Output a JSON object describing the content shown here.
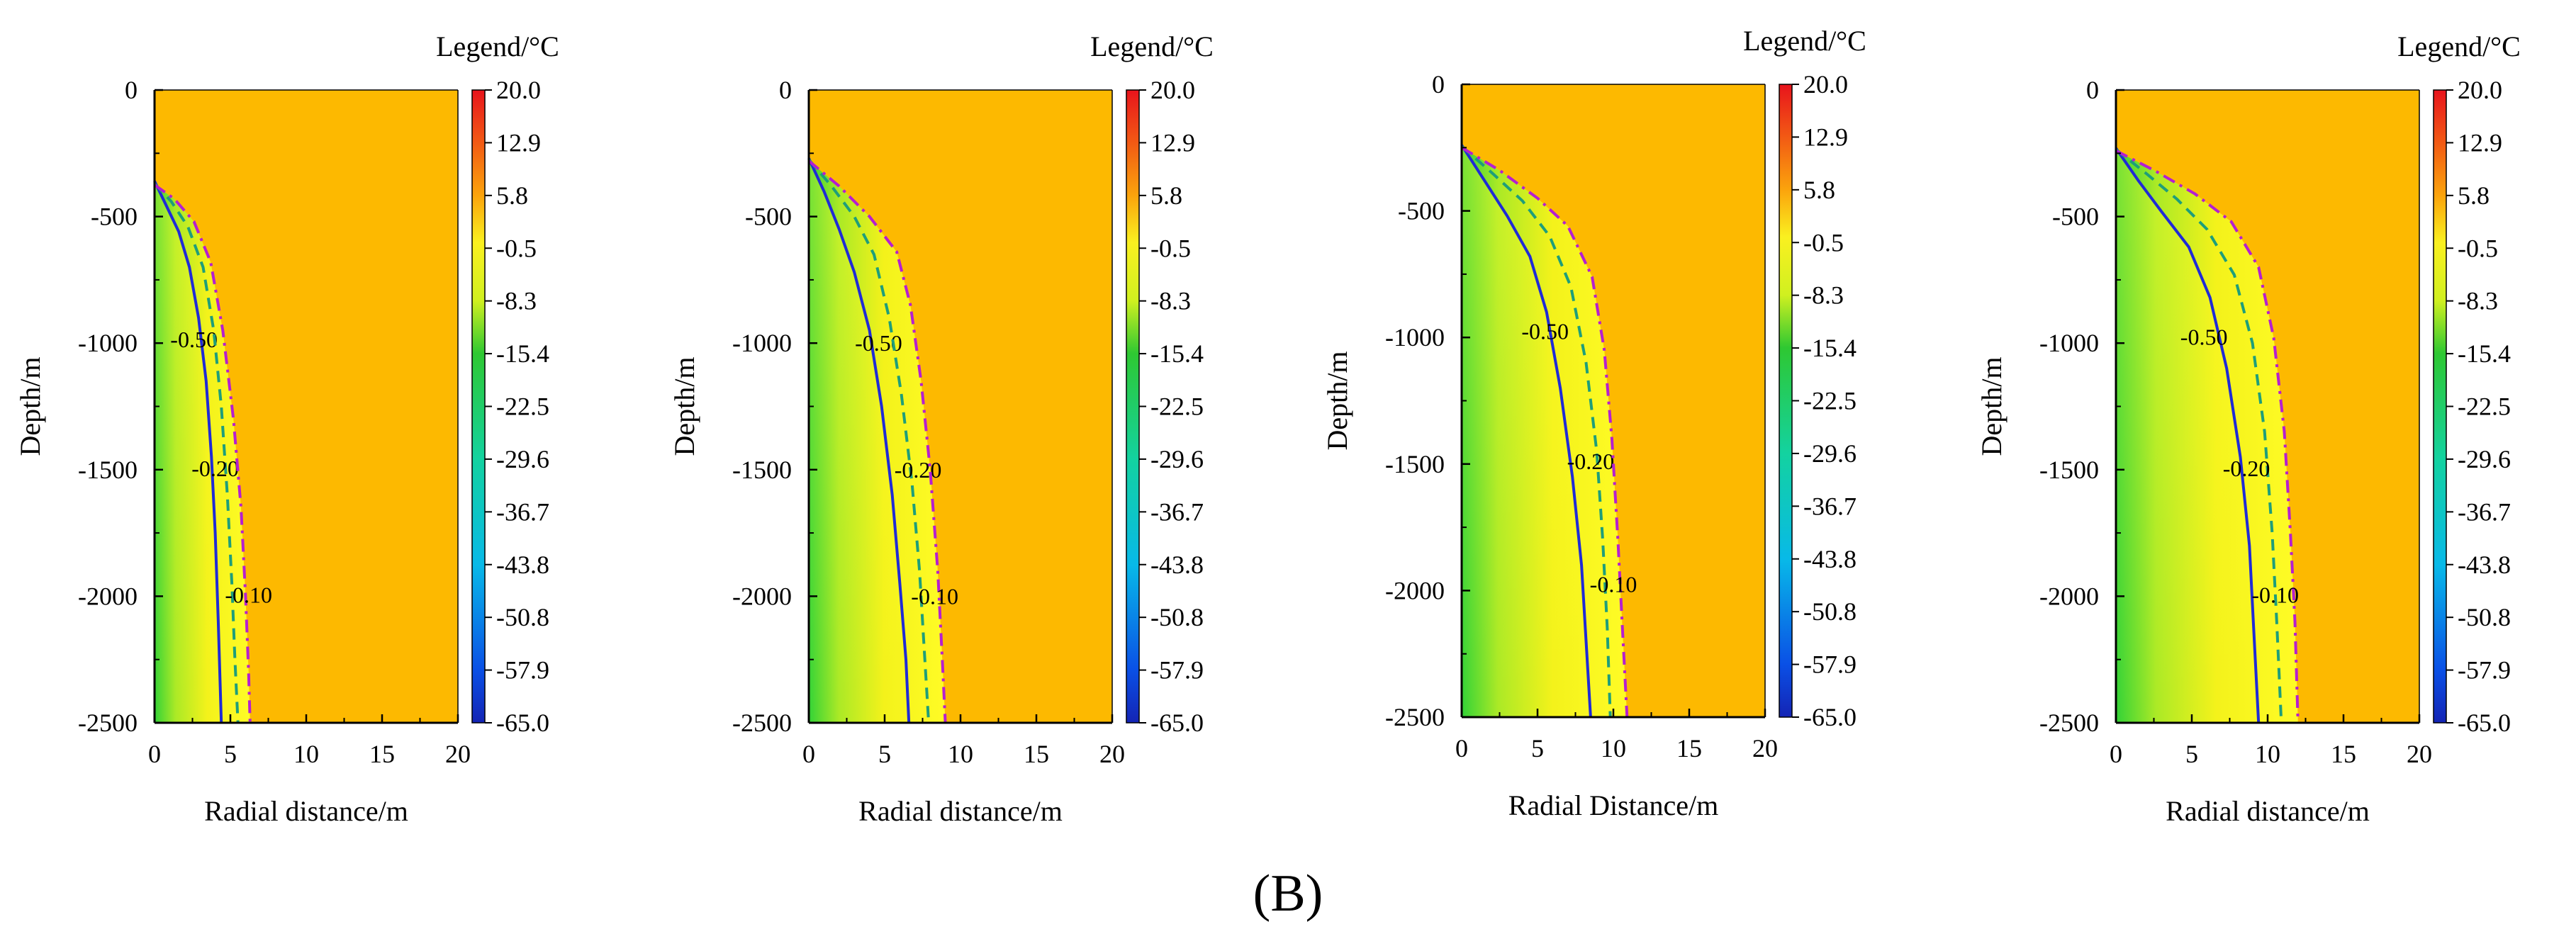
{
  "caption": "(B)",
  "colors": {
    "background": "#FDB900",
    "solid_contour": "#1F2BD6",
    "dashed_contour": "#1E9E7A",
    "dashdot_contour": "#B51FD0"
  },
  "colorbar": {
    "title": "Legend/°C",
    "ticks": [
      "20.0",
      "12.9",
      "5.8",
      "-0.5",
      "-8.3",
      "-15.4",
      "-22.5",
      "-29.6",
      "-36.7",
      "-43.8",
      "-50.8",
      "-57.9",
      "-65.0"
    ],
    "range": [
      -65.0,
      20.0
    ],
    "stops": [
      {
        "value": 20.0,
        "color": "#E8141C"
      },
      {
        "value": 12.9,
        "color": "#F25A14"
      },
      {
        "value": 5.8,
        "color": "#FBA40C"
      },
      {
        "value": -0.5,
        "color": "#FAF020"
      },
      {
        "value": -8.3,
        "color": "#D0F020"
      },
      {
        "value": -15.4,
        "color": "#2EC832"
      },
      {
        "value": -29.6,
        "color": "#13D2A0"
      },
      {
        "value": -43.8,
        "color": "#08B9E8"
      },
      {
        "value": -57.9,
        "color": "#0A50E6"
      },
      {
        "value": -65.0,
        "color": "#1424B4"
      }
    ]
  },
  "chart_data": [
    {
      "type": "contour",
      "xlabel": "Radial distance/m",
      "ylabel": "Depth/m",
      "xlim": [
        0,
        20
      ],
      "ylim": [
        -2500,
        0
      ],
      "xticks": [
        "0",
        "5",
        "10",
        "15",
        "20"
      ],
      "yticks": [
        "0",
        "-500",
        "-1000",
        "-1500",
        "-2000",
        "-2500"
      ],
      "contours": [
        {
          "name": "-0.50",
          "style": "solid",
          "label_at": [
            2.6,
            -985
          ],
          "points": [
            [
              0,
              -360
            ],
            [
              0.8,
              -460
            ],
            [
              1.6,
              -560
            ],
            [
              2.3,
              -700
            ],
            [
              2.9,
              -900
            ],
            [
              3.4,
              -1150
            ],
            [
              3.75,
              -1450
            ],
            [
              4.0,
              -1750
            ],
            [
              4.2,
              -2100
            ],
            [
              4.4,
              -2500
            ]
          ]
        },
        {
          "name": "-0.20",
          "style": "dashed",
          "label_at": [
            4.0,
            -1495
          ],
          "points": [
            [
              0,
              -370
            ],
            [
              1.1,
              -440
            ],
            [
              2.2,
              -540
            ],
            [
              3.2,
              -700
            ],
            [
              3.9,
              -950
            ],
            [
              4.4,
              -1250
            ],
            [
              4.8,
              -1600
            ],
            [
              5.1,
              -1950
            ],
            [
              5.3,
              -2250
            ],
            [
              5.5,
              -2500
            ]
          ]
        },
        {
          "name": "-0.10",
          "style": "dashdot",
          "label_at": [
            6.2,
            -1995
          ],
          "points": [
            [
              0,
              -375
            ],
            [
              1.3,
              -430
            ],
            [
              2.6,
              -520
            ],
            [
              3.7,
              -680
            ],
            [
              4.5,
              -950
            ],
            [
              5.2,
              -1300
            ],
            [
              5.7,
              -1650
            ],
            [
              6.0,
              -2000
            ],
            [
              6.2,
              -2300
            ],
            [
              6.3,
              -2500
            ]
          ]
        }
      ]
    },
    {
      "type": "contour",
      "xlabel": "Radial distance/m",
      "ylabel": "Depth/m",
      "xlim": [
        0,
        20
      ],
      "ylim": [
        -2500,
        0
      ],
      "xticks": [
        "0",
        "5",
        "10",
        "15",
        "20"
      ],
      "yticks": [
        "0",
        "-500",
        "-1000",
        "-1500",
        "-2000",
        "-2500"
      ],
      "contours": [
        {
          "name": "-0.50",
          "style": "solid",
          "label_at": [
            4.6,
            -1000
          ],
          "points": [
            [
              0,
              -270
            ],
            [
              1.0,
              -400
            ],
            [
              2.0,
              -550
            ],
            [
              3.0,
              -720
            ],
            [
              4.0,
              -950
            ],
            [
              4.8,
              -1250
            ],
            [
              5.5,
              -1600
            ],
            [
              6.0,
              -1950
            ],
            [
              6.4,
              -2250
            ],
            [
              6.6,
              -2500
            ]
          ]
        },
        {
          "name": "-0.20",
          "style": "dashed",
          "label_at": [
            7.2,
            -1500
          ],
          "points": [
            [
              0,
              -275
            ],
            [
              1.5,
              -380
            ],
            [
              3.0,
              -500
            ],
            [
              4.3,
              -650
            ],
            [
              5.3,
              -900
            ],
            [
              6.1,
              -1200
            ],
            [
              6.8,
              -1550
            ],
            [
              7.3,
              -1900
            ],
            [
              7.6,
              -2200
            ],
            [
              7.9,
              -2500
            ]
          ]
        },
        {
          "name": "-0.10",
          "style": "dashdot",
          "label_at": [
            8.3,
            -2000
          ],
          "points": [
            [
              0,
              -280
            ],
            [
              2.0,
              -380
            ],
            [
              4.0,
              -500
            ],
            [
              5.8,
              -640
            ],
            [
              6.7,
              -850
            ],
            [
              7.4,
              -1150
            ],
            [
              8.0,
              -1500
            ],
            [
              8.5,
              -1900
            ],
            [
              8.8,
              -2250
            ],
            [
              9.0,
              -2500
            ]
          ]
        }
      ]
    },
    {
      "type": "contour",
      "xlabel": "Radial Distance/m",
      "ylabel": "Depth/m",
      "xlim": [
        0,
        20
      ],
      "ylim": [
        -2500,
        0
      ],
      "xticks": [
        "0",
        "5",
        "10",
        "15",
        "20"
      ],
      "yticks": [
        "0",
        "-500",
        "-1000",
        "-1500",
        "-2000",
        "-2500"
      ],
      "contours": [
        {
          "name": "-0.50",
          "style": "solid",
          "label_at": [
            5.5,
            -975
          ],
          "points": [
            [
              0,
              -240
            ],
            [
              1.5,
              -380
            ],
            [
              3.0,
              -520
            ],
            [
              4.5,
              -680
            ],
            [
              5.6,
              -900
            ],
            [
              6.5,
              -1200
            ],
            [
              7.3,
              -1550
            ],
            [
              7.9,
              -1900
            ],
            [
              8.2,
              -2200
            ],
            [
              8.5,
              -2500
            ]
          ]
        },
        {
          "name": "-0.20",
          "style": "dashed",
          "label_at": [
            8.5,
            -1490
          ],
          "points": [
            [
              0,
              -245
            ],
            [
              2.0,
              -350
            ],
            [
              4.0,
              -460
            ],
            [
              5.8,
              -600
            ],
            [
              7.2,
              -800
            ],
            [
              8.2,
              -1100
            ],
            [
              8.9,
              -1450
            ],
            [
              9.3,
              -1800
            ],
            [
              9.6,
              -2150
            ],
            [
              9.8,
              -2500
            ]
          ]
        },
        {
          "name": "-0.10",
          "style": "dashdot",
          "label_at": [
            10.0,
            -1975
          ],
          "points": [
            [
              0,
              -250
            ],
            [
              2.5,
              -340
            ],
            [
              5.0,
              -450
            ],
            [
              7.0,
              -560
            ],
            [
              8.6,
              -760
            ],
            [
              9.4,
              -1050
            ],
            [
              9.9,
              -1400
            ],
            [
              10.3,
              -1800
            ],
            [
              10.6,
              -2150
            ],
            [
              10.9,
              -2500
            ]
          ]
        }
      ]
    },
    {
      "type": "contour",
      "xlabel": "Radial distance/m",
      "ylabel": "Depth/m",
      "xlim": [
        0,
        20
      ],
      "ylim": [
        -2500,
        0
      ],
      "xticks": [
        "0",
        "5",
        "10",
        "15",
        "20"
      ],
      "yticks": [
        "0",
        "-500",
        "-1000",
        "-1500",
        "-2000",
        "-2500"
      ],
      "contours": [
        {
          "name": "-0.50",
          "style": "solid",
          "label_at": [
            5.8,
            -975
          ],
          "points": [
            [
              0,
              -230
            ],
            [
              1.5,
              -360
            ],
            [
              3.0,
              -480
            ],
            [
              4.8,
              -620
            ],
            [
              6.2,
              -820
            ],
            [
              7.3,
              -1100
            ],
            [
              8.2,
              -1450
            ],
            [
              8.8,
              -1800
            ],
            [
              9.1,
              -2150
            ],
            [
              9.4,
              -2500
            ]
          ]
        },
        {
          "name": "-0.20",
          "style": "dashed",
          "label_at": [
            8.6,
            -1495
          ],
          "points": [
            [
              0,
              -235
            ],
            [
              2.0,
              -330
            ],
            [
              4.0,
              -430
            ],
            [
              6.0,
              -550
            ],
            [
              7.8,
              -730
            ],
            [
              9.0,
              -1000
            ],
            [
              9.8,
              -1350
            ],
            [
              10.3,
              -1750
            ],
            [
              10.6,
              -2100
            ],
            [
              10.9,
              -2500
            ]
          ]
        },
        {
          "name": "-0.10",
          "style": "dashdot",
          "label_at": [
            10.5,
            -1995
          ],
          "points": [
            [
              0,
              -240
            ],
            [
              2.6,
              -320
            ],
            [
              5.2,
              -410
            ],
            [
              7.6,
              -520
            ],
            [
              9.4,
              -700
            ],
            [
              10.4,
              -980
            ],
            [
              11.1,
              -1350
            ],
            [
              11.5,
              -1750
            ],
            [
              11.8,
              -2100
            ],
            [
              12.0,
              -2500
            ]
          ]
        }
      ]
    }
  ]
}
